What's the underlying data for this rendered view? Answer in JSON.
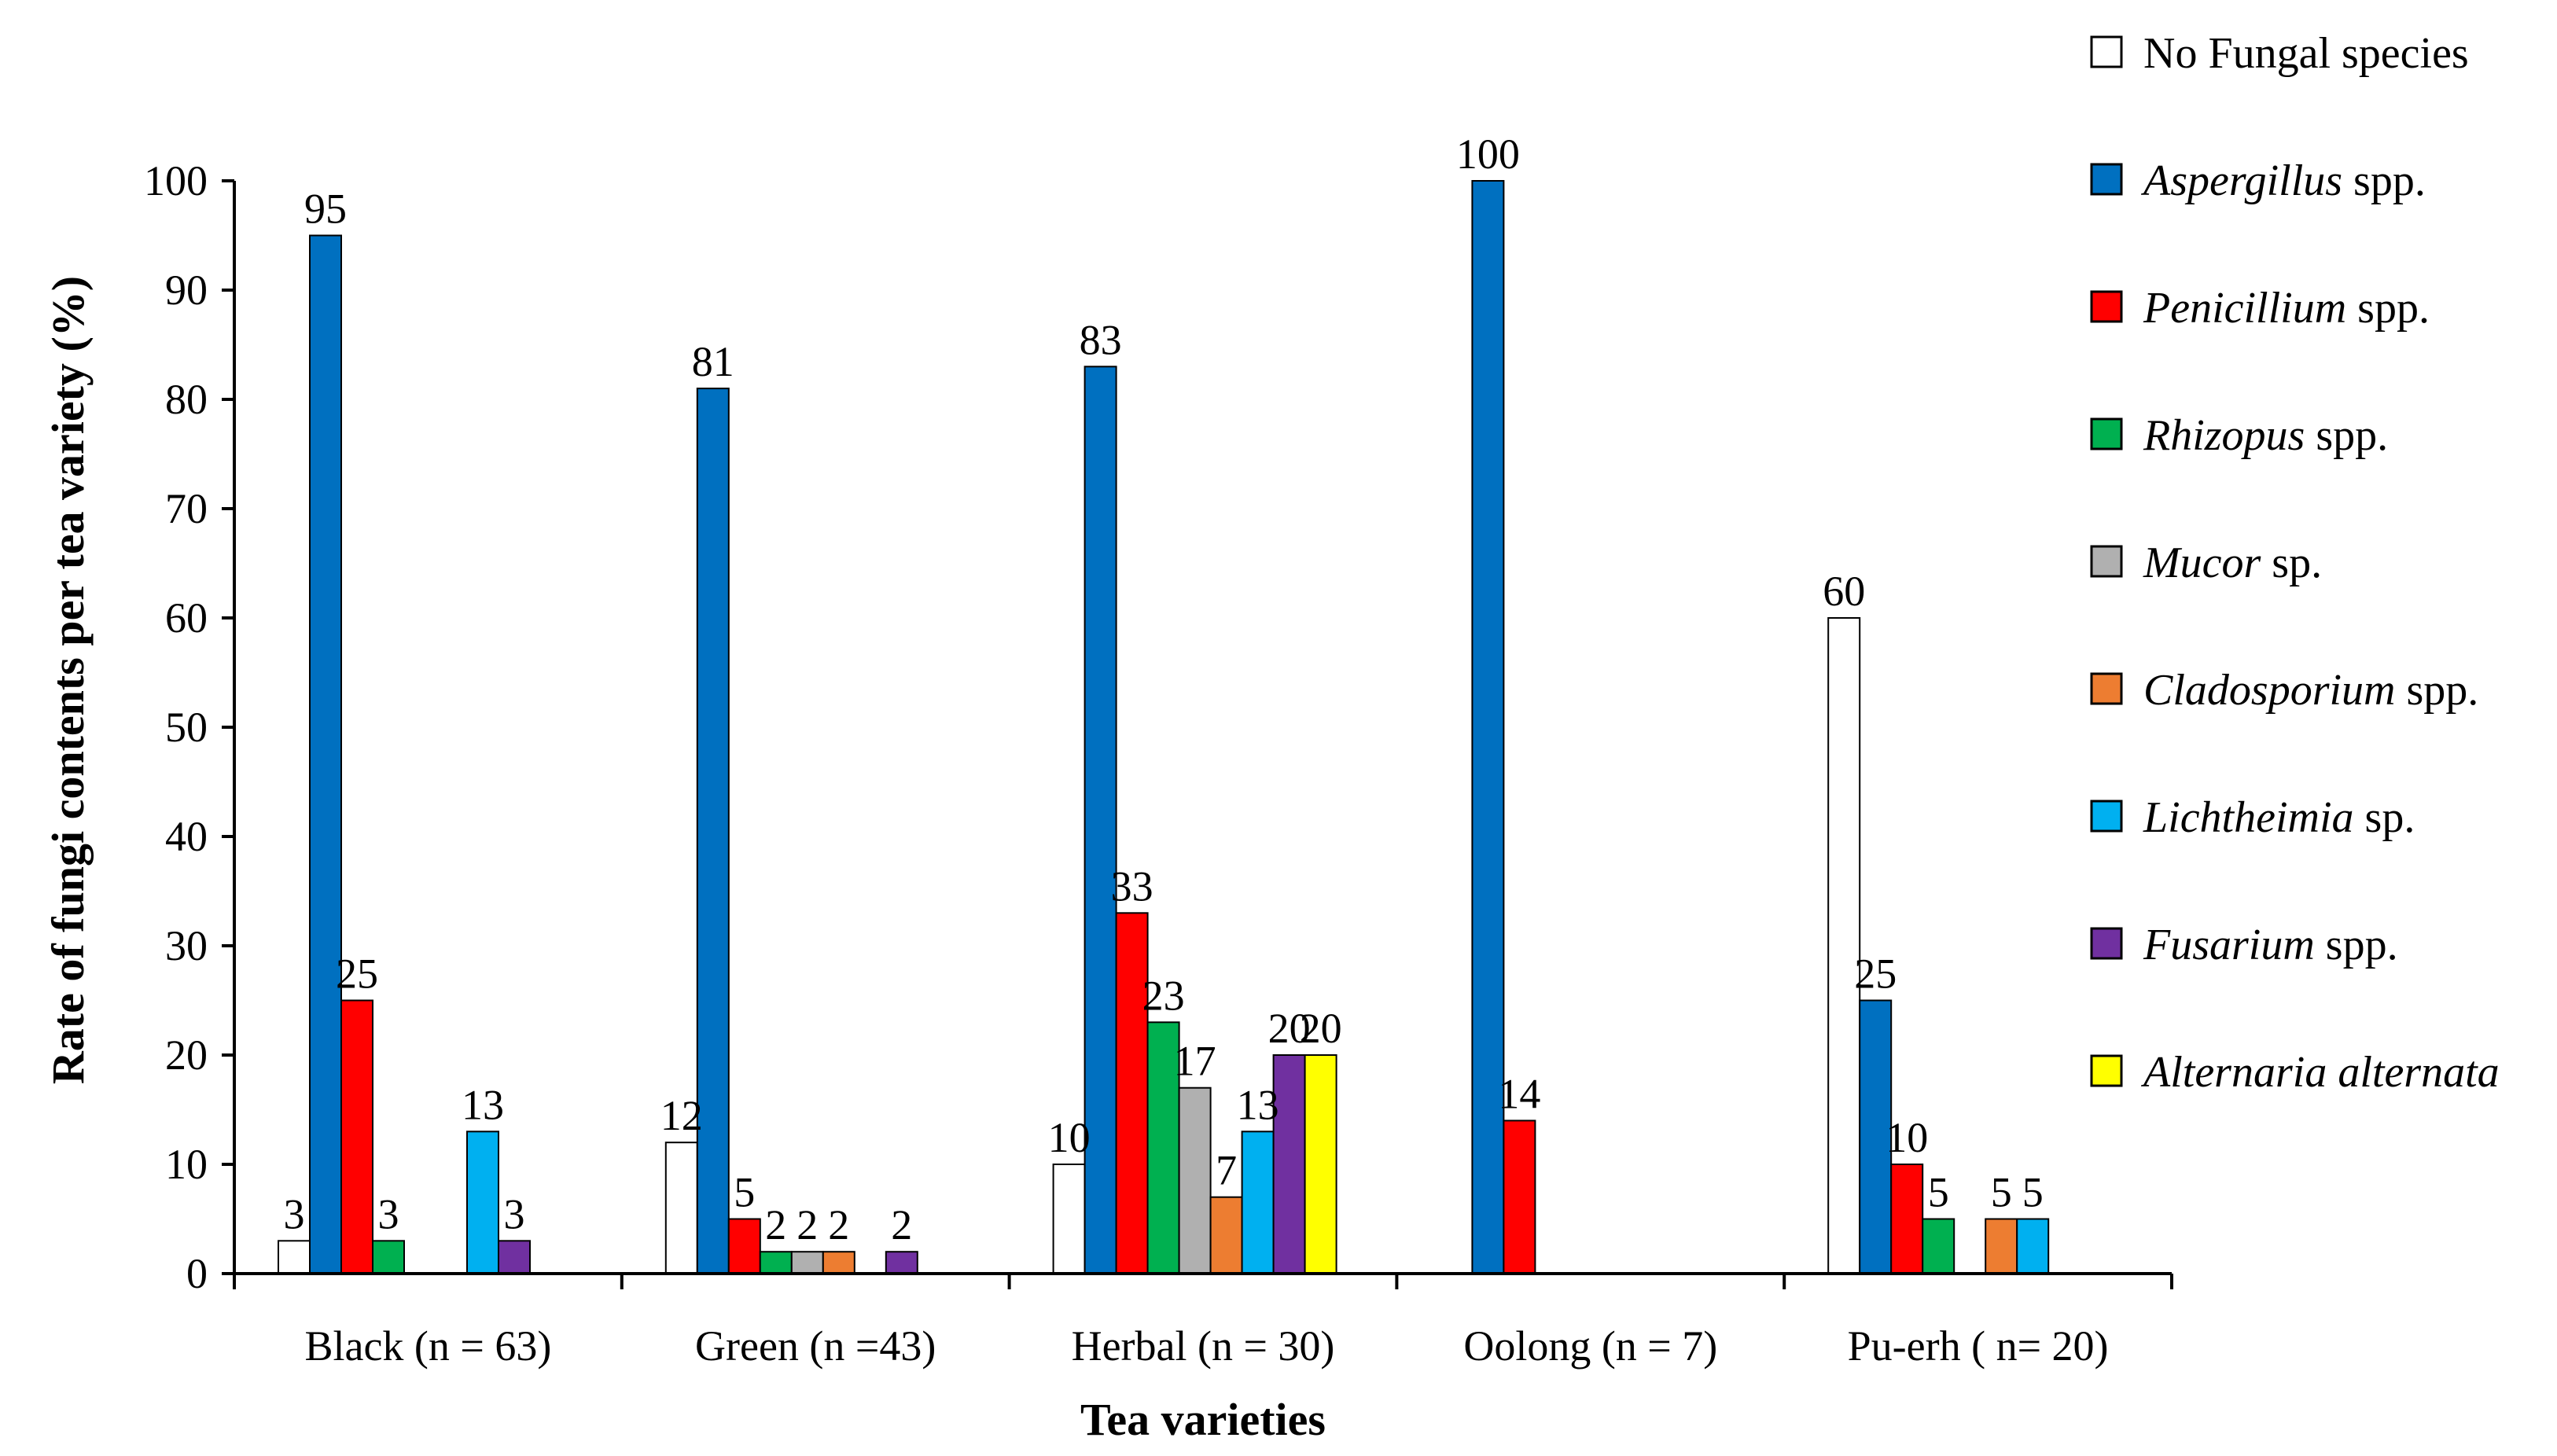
{
  "chart_data": {
    "type": "bar",
    "title": "",
    "xlabel": "Tea varieties",
    "ylabel": "Rate of fungi contents per tea variety (%)",
    "ylim": [
      0,
      100
    ],
    "yticks": [
      "0",
      "10",
      "20",
      "30",
      "40",
      "50",
      "60",
      "70",
      "80",
      "90",
      "100"
    ],
    "categories": [
      "Black (n = 63)",
      "Green (n =43)",
      "Herbal (n = 30)",
      "Oolong (n = 7)",
      "Pu-erh ( n= 20)"
    ],
    "legend_position": "right",
    "series": [
      {
        "name": "No Fungal species",
        "name_italic": "",
        "name_suffix": "No Fungal species",
        "color": "#ffffff",
        "values": [
          3,
          12,
          10,
          null,
          60
        ],
        "labels": [
          "3",
          "12",
          "10",
          "",
          "60"
        ]
      },
      {
        "name": "Aspergillus spp.",
        "name_italic": "Aspergillus",
        "name_suffix": " spp.",
        "color": "#0070c0",
        "values": [
          95,
          81,
          83,
          100,
          25
        ],
        "labels": [
          "95",
          "81",
          "83",
          "100",
          "25"
        ]
      },
      {
        "name": "Penicillium spp.",
        "name_italic": "Penicillium",
        "name_suffix": " spp.",
        "color": "#ff0000",
        "values": [
          25,
          5,
          33,
          14,
          10
        ],
        "labels": [
          "25",
          "5",
          "33",
          "14",
          "10"
        ]
      },
      {
        "name": "Rhizopus spp.",
        "name_italic": "Rhizopus",
        "name_suffix": " spp.",
        "color": "#00b050",
        "values": [
          3,
          2,
          23,
          null,
          5
        ],
        "labels": [
          "3",
          "2",
          "23",
          "",
          "5"
        ]
      },
      {
        "name": "Mucor sp.",
        "name_italic": "Mucor",
        "name_suffix": " sp.",
        "color": "#b0b0b0",
        "values": [
          null,
          2,
          17,
          null,
          null
        ],
        "labels": [
          "",
          "2",
          "17",
          "",
          ""
        ]
      },
      {
        "name": "Cladosporium spp.",
        "name_italic": "Cladosporium",
        "name_suffix": " spp.",
        "color": "#ed7d31",
        "values": [
          null,
          2,
          7,
          null,
          5
        ],
        "labels": [
          "",
          "2",
          "7",
          "",
          "5"
        ]
      },
      {
        "name": "Lichtheimia sp.",
        "name_italic": "Lichtheimia",
        "name_suffix": " sp.",
        "color": "#00b0f0",
        "values": [
          13,
          null,
          13,
          null,
          5
        ],
        "labels": [
          "13",
          "",
          "13",
          "",
          "5"
        ]
      },
      {
        "name": "Fusarium spp.",
        "name_italic": "Fusarium",
        "name_suffix": " spp.",
        "color": "#7030a0",
        "values": [
          3,
          2,
          20,
          null,
          null
        ],
        "labels": [
          "3",
          "2",
          "20",
          "",
          ""
        ]
      },
      {
        "name": "Alternaria alternata",
        "name_italic": "Alternaria alternata",
        "name_suffix": "",
        "color": "#ffff00",
        "values": [
          null,
          null,
          20,
          null,
          null
        ],
        "labels": [
          "",
          "",
          "20",
          "",
          ""
        ]
      }
    ]
  }
}
